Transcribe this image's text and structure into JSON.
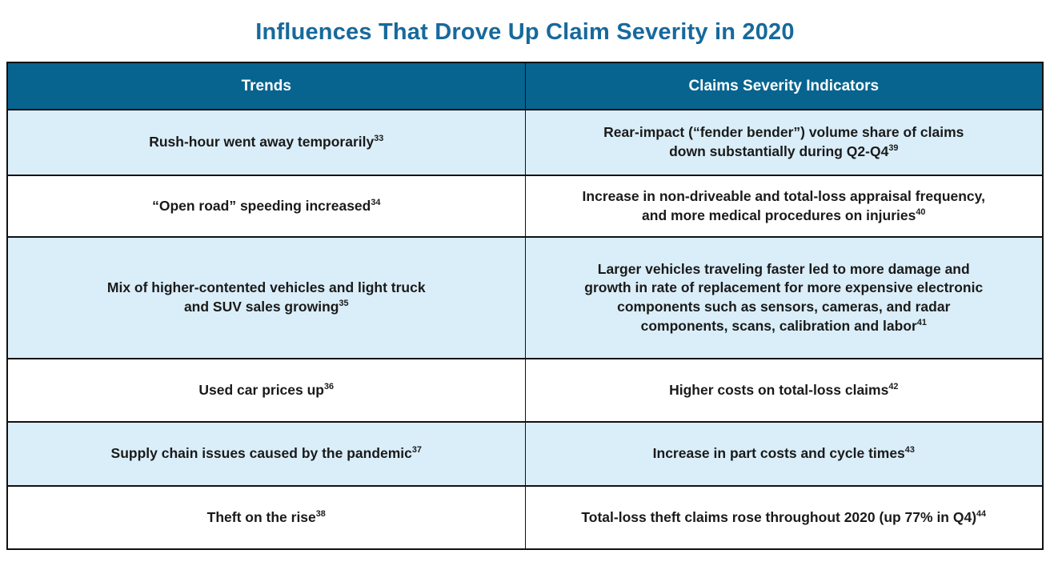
{
  "page": {
    "title": "Influences That Drove Up Claim Severity in 2020"
  },
  "colors": {
    "title_blue": "#17699c",
    "header_background": "#06648f",
    "header_text": "#ffffff",
    "row_alt_light_blue": "#daeef9",
    "row_white": "#ffffff",
    "border": "#111111",
    "body_text": "#1a1a1a"
  },
  "table": {
    "columns": [
      "Trends",
      "Claims Severity Indicators"
    ],
    "rows": [
      {
        "trend": "Rush-hour went away temporarily",
        "trend_sup": "33",
        "indicator": "Rear-impact (“fender bender”) volume share of claims\ndown substantially during Q2-Q4",
        "indicator_sup": "39"
      },
      {
        "trend": "“Open road” speeding increased",
        "trend_sup": "34",
        "indicator": "Increase in non-driveable and total-loss appraisal frequency,\nand more medical procedures on injuries",
        "indicator_sup": "40"
      },
      {
        "trend": "Mix of higher-contented vehicles and light truck\nand SUV sales growing",
        "trend_sup": "35",
        "indicator": "Larger vehicles traveling faster led to more damage and\ngrowth in rate of replacement for more expensive electronic\ncomponents such as sensors, cameras, and radar\ncomponents, scans, calibration and labor",
        "indicator_sup": "41"
      },
      {
        "trend": "Used car prices up",
        "trend_sup": "36",
        "indicator": "Higher costs on total-loss claims",
        "indicator_sup": "42"
      },
      {
        "trend": "Supply chain issues caused by the pandemic",
        "trend_sup": "37",
        "indicator": "Increase in part costs and cycle times",
        "indicator_sup": "43"
      },
      {
        "trend": "Theft on the rise",
        "trend_sup": "38",
        "indicator": "Total-loss theft claims rose throughout 2020 (up 77% in Q4)",
        "indicator_sup": "44"
      }
    ]
  }
}
